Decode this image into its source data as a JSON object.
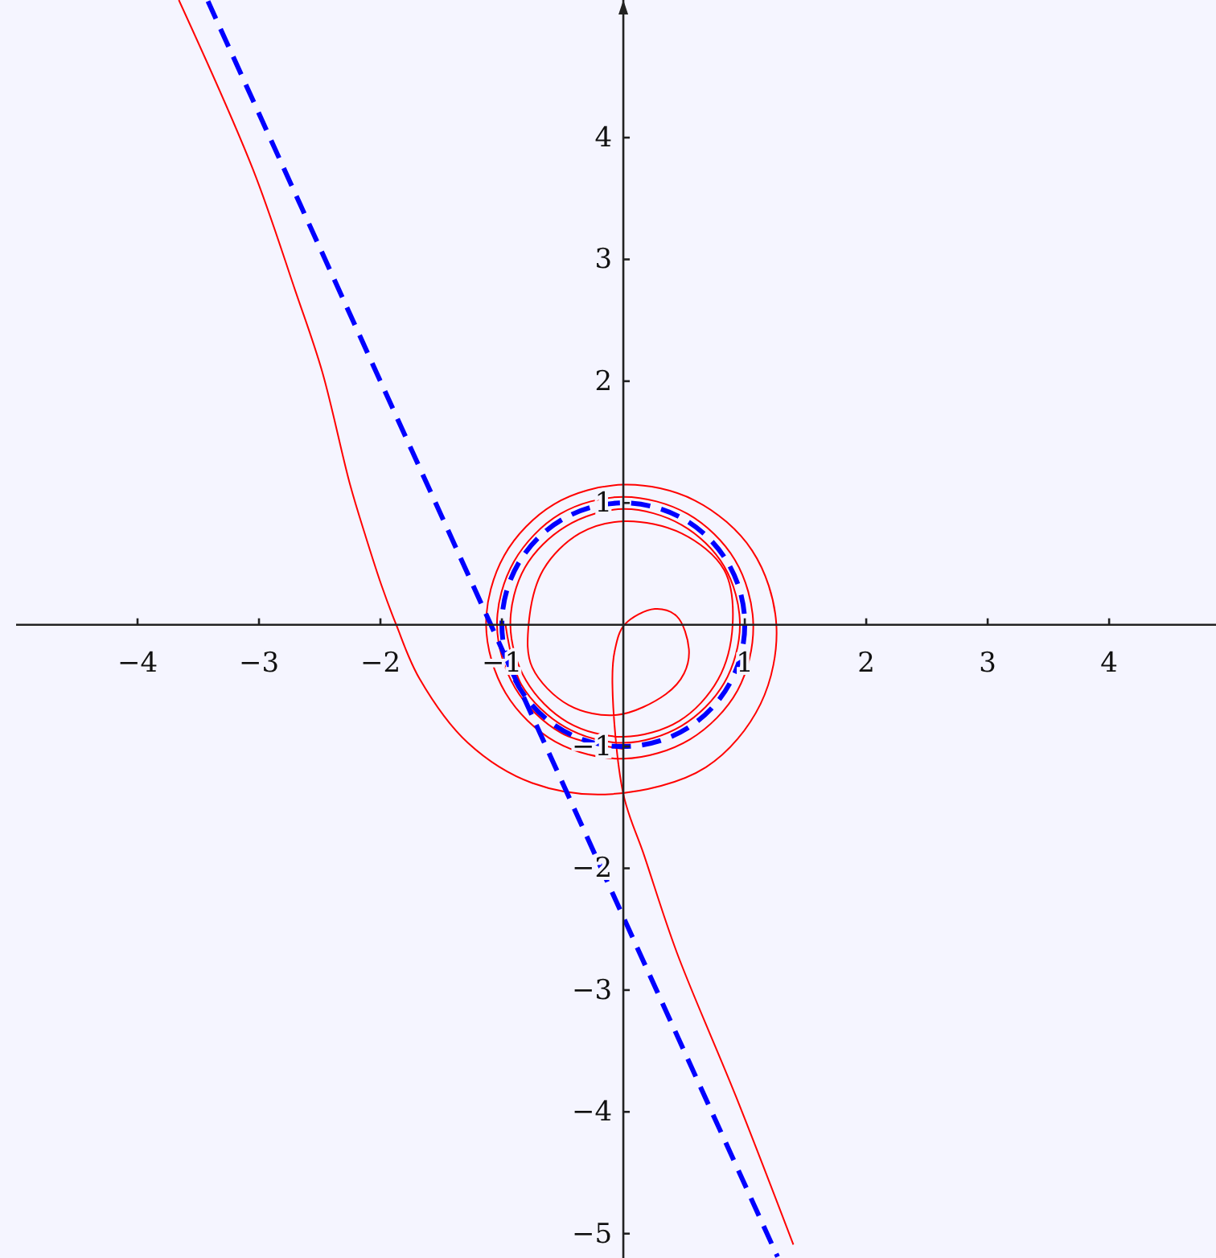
{
  "chart_data": {
    "type": "line",
    "xlim": [
      -5,
      4.88
    ],
    "ylim": [
      -5.2,
      5.13
    ],
    "xticks": [
      {
        "value": -4,
        "label": "−4"
      },
      {
        "value": -3,
        "label": "−3"
      },
      {
        "value": -2,
        "label": "−2"
      },
      {
        "value": -1,
        "label": "−1"
      },
      1,
      2,
      3,
      4
    ],
    "yticks": [
      {
        "value": -5,
        "label": "−5"
      },
      {
        "value": -4,
        "label": "−4"
      },
      {
        "value": -3,
        "label": "−3"
      },
      {
        "value": -2,
        "label": "−2"
      },
      {
        "value": -1,
        "label": "−1"
      },
      1,
      2,
      3,
      4
    ],
    "grid": false,
    "marker": "none",
    "series": [
      {
        "color": "#ff0000",
        "line_style": "solid",
        "x": [
          -3.66,
          -3.05,
          -2.7,
          -2.48,
          -2.25,
          -2.12,
          -1.99,
          -1.87,
          -1.68,
          -1.28,
          -0.75,
          -0.09,
          0.68,
          1.13,
          1.26,
          1.06,
          0.59,
          0,
          -0.57,
          -0.98,
          -1.13,
          -0.97,
          -0.56,
          0,
          0.55,
          0.94,
          1.07,
          0.92,
          0.53,
          0,
          -0.52,
          -0.9,
          -1.04,
          -0.89,
          -0.51,
          0
        ],
        "values": [
          5.13,
          3.74,
          2.74,
          2.08,
          1.15,
          0.72,
          0.32,
          0,
          -0.44,
          -0.97,
          -1.3,
          -1.39,
          -1.17,
          -0.65,
          0,
          0.61,
          1.02,
          1.15,
          0.99,
          0.57,
          0,
          -0.56,
          -0.96,
          -1.1,
          -0.94,
          -0.54,
          0,
          0.53,
          0.91,
          1.05,
          0.91,
          0.52,
          0,
          -0.52,
          -0.89,
          -1.02
        ]
      },
      {
        "color": "#ff0000",
        "line_style": "solid",
        "x": [
          1.4,
          0.93,
          0.44,
          0.17,
          0,
          -0.09,
          -0.07,
          0.01,
          0.26,
          0.44,
          0.54,
          0.5,
          0.35,
          -0.05,
          -0.45,
          -0.75,
          -0.78,
          -0.66,
          -0.36,
          0.01,
          0.48,
          0.83,
          0.9,
          0.78,
          0.46,
          0,
          -0.46,
          -0.8,
          -0.93,
          -0.81,
          -0.47,
          0,
          0.48,
          0.83,
          0.96,
          0.83,
          0.48,
          0,
          -0.48,
          -0.84,
          -0.97
        ],
        "values": [
          -5.09,
          -3.88,
          -2.69,
          -1.89,
          -1.39,
          -0.48,
          -0.21,
          0,
          0.13,
          0.07,
          -0.2,
          -0.4,
          -0.57,
          -0.74,
          -0.66,
          -0.35,
          0,
          0.45,
          0.75,
          0.85,
          0.75,
          0.45,
          0,
          -0.45,
          -0.79,
          -0.92,
          -0.8,
          -0.46,
          0,
          0.47,
          0.81,
          0.95,
          0.82,
          0.48,
          0,
          -0.48,
          -0.83,
          -0.97,
          -0.84,
          -0.49,
          0
        ]
      },
      {
        "color": "#0000ff",
        "line_style": "dashed",
        "x": [
          -3.42,
          -1.5,
          0,
          1.27
        ],
        "values": [
          5.12,
          0.9,
          -2.4,
          -5.19
        ]
      }
    ]
  }
}
